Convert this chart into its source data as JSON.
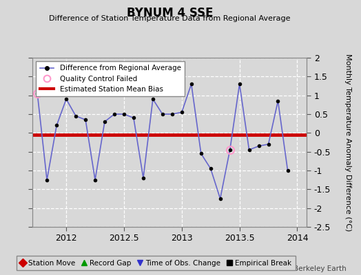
{
  "title": "BYNUM 4 SSE",
  "subtitle": "Difference of Station Temperature Data from Regional Average",
  "ylabel": "Monthly Temperature Anomaly Difference (°C)",
  "watermark": "Berkeley Earth",
  "xlim": [
    2011.708,
    2014.083
  ],
  "ylim": [
    -2.5,
    2.0
  ],
  "yticks": [
    -2.5,
    -2.0,
    -1.5,
    -1.0,
    -0.5,
    0.0,
    0.5,
    1.0,
    1.5,
    2.0
  ],
  "xtick_vals": [
    2012,
    2012.5,
    2013,
    2013.5,
    2014
  ],
  "xtick_labels": [
    "2012",
    "2012.5",
    "2013",
    "2013.5",
    "2014"
  ],
  "mean_bias": -0.05,
  "line_color": "#6666cc",
  "marker_color": "#000000",
  "qc_failed_color": "#ff99cc",
  "mean_bias_color": "#cc0000",
  "bg_color": "#d8d8d8",
  "plot_bg_color": "#d8d8d8",
  "x_data": [
    2011.75,
    2011.833,
    2011.917,
    2012.0,
    2012.083,
    2012.167,
    2012.25,
    2012.333,
    2012.417,
    2012.5,
    2012.583,
    2012.667,
    2012.75,
    2012.833,
    2012.917,
    2013.0,
    2013.083,
    2013.167,
    2013.25,
    2013.333,
    2013.417,
    2013.5,
    2013.583,
    2013.667,
    2013.75,
    2013.833,
    2013.917
  ],
  "y_data": [
    1.05,
    -1.25,
    0.2,
    0.9,
    0.45,
    0.35,
    -1.25,
    0.3,
    0.5,
    0.5,
    0.4,
    -1.2,
    0.9,
    0.5,
    0.5,
    0.55,
    1.3,
    -0.55,
    -0.95,
    -1.75,
    -0.45,
    1.3,
    -0.45,
    -0.35,
    -0.3,
    0.85,
    -1.0
  ],
  "qc_failed_indices": [
    0,
    20
  ],
  "bottom_legend": [
    {
      "label": "Station Move",
      "color": "#cc0000",
      "marker": "D"
    },
    {
      "label": "Record Gap",
      "color": "#009900",
      "marker": "^"
    },
    {
      "label": "Time of Obs. Change",
      "color": "#3333cc",
      "marker": "v"
    },
    {
      "label": "Empirical Break",
      "color": "#000000",
      "marker": "s"
    }
  ]
}
